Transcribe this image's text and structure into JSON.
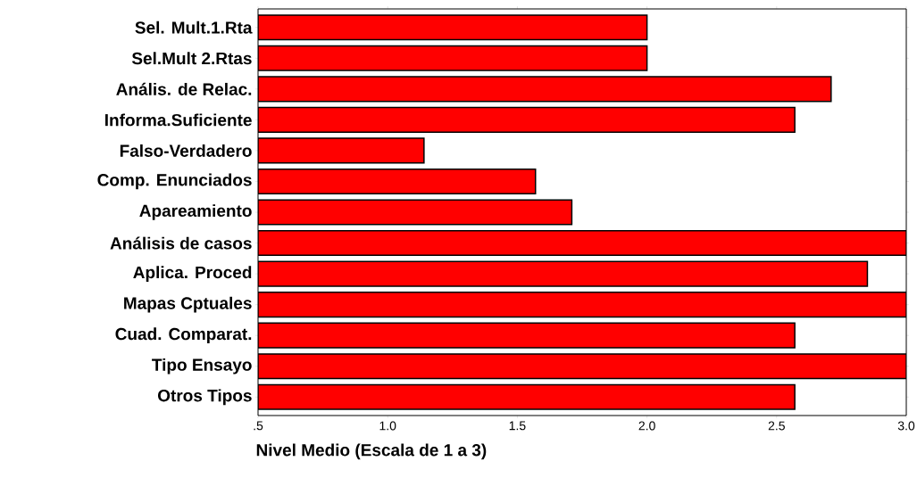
{
  "chart_data": {
    "type": "bar",
    "orientation": "horizontal",
    "xlabel": "Nivel Medio (Escala de 1 a 3)",
    "categories": [
      "Sel. Mult.1.Rta",
      "Sel.Mult 2.Rtas",
      "Anális. de Relac.",
      "Informa.Suficiente",
      "Falso-Verdadero",
      "Comp. Enunciados",
      "Apareamiento",
      "Análisis de casos",
      "Aplica. Proced",
      "Mapas Cptuales",
      "Cuad. Comparat.",
      "Tipo Ensayo",
      "Otros Tipos"
    ],
    "values": [
      2.0,
      2.0,
      2.71,
      2.57,
      1.14,
      1.57,
      1.71,
      3.0,
      2.85,
      3.0,
      2.57,
      3.0,
      2.57
    ],
    "color": "#ff0000",
    "xlim": [
      0.5,
      3.0
    ],
    "xticks": [
      {
        "value": 0.5,
        "label": ".5"
      },
      {
        "value": 1.0,
        "label": "1.0"
      },
      {
        "value": 1.5,
        "label": "1.5"
      },
      {
        "value": 2.0,
        "label": "2.0"
      },
      {
        "value": 2.5,
        "label": "2.5"
      },
      {
        "value": 3.0,
        "label": "3.0"
      }
    ]
  }
}
